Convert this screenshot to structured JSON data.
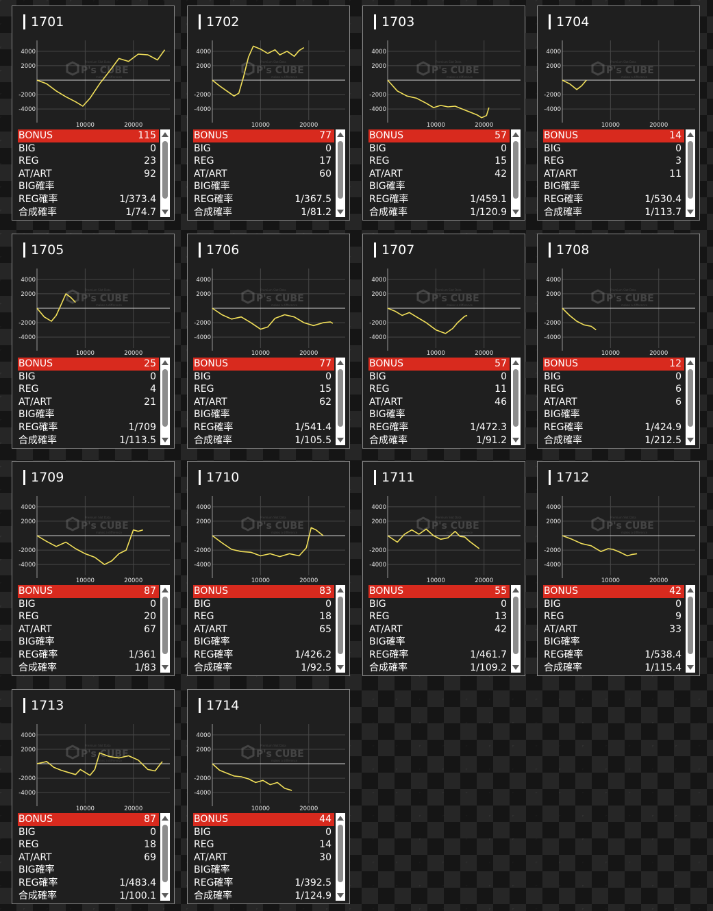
{
  "labels": {
    "bonus": "BONUS",
    "big": "BIG",
    "reg": "REG",
    "atart": "AT/ART",
    "big_rate": "BIG確率",
    "reg_rate": "REG確率",
    "total_rate": "合成確率"
  },
  "watermark": {
    "logo": "P's CUBE",
    "small_top": "Premium Slot Data",
    "small_bottom": "makes a difference"
  },
  "colors": {
    "bonus_row": "#d82a1e",
    "line": "#f2e05a",
    "card_bg": "#1f1f1f"
  },
  "machines": [
    {
      "id": "1701",
      "bonus": "115",
      "big": "0",
      "reg": "23",
      "atart": "92",
      "big_rate": "",
      "reg_rate": "1/373.4",
      "total_rate": "1/74.7"
    },
    {
      "id": "1702",
      "bonus": "77",
      "big": "0",
      "reg": "17",
      "atart": "60",
      "big_rate": "",
      "reg_rate": "1/367.5",
      "total_rate": "1/81.2"
    },
    {
      "id": "1703",
      "bonus": "57",
      "big": "0",
      "reg": "15",
      "atart": "42",
      "big_rate": "",
      "reg_rate": "1/459.1",
      "total_rate": "1/120.9"
    },
    {
      "id": "1704",
      "bonus": "14",
      "big": "0",
      "reg": "3",
      "atart": "11",
      "big_rate": "",
      "reg_rate": "1/530.4",
      "total_rate": "1/113.7"
    },
    {
      "id": "1705",
      "bonus": "25",
      "big": "0",
      "reg": "4",
      "atart": "21",
      "big_rate": "",
      "reg_rate": "1/709",
      "total_rate": "1/113.5"
    },
    {
      "id": "1706",
      "bonus": "77",
      "big": "0",
      "reg": "15",
      "atart": "62",
      "big_rate": "",
      "reg_rate": "1/541.4",
      "total_rate": "1/105.5"
    },
    {
      "id": "1707",
      "bonus": "57",
      "big": "0",
      "reg": "11",
      "atart": "46",
      "big_rate": "",
      "reg_rate": "1/472.3",
      "total_rate": "1/91.2"
    },
    {
      "id": "1708",
      "bonus": "12",
      "big": "0",
      "reg": "6",
      "atart": "6",
      "big_rate": "",
      "reg_rate": "1/424.9",
      "total_rate": "1/212.5"
    },
    {
      "id": "1709",
      "bonus": "87",
      "big": "0",
      "reg": "20",
      "atart": "67",
      "big_rate": "",
      "reg_rate": "1/361",
      "total_rate": "1/83"
    },
    {
      "id": "1710",
      "bonus": "83",
      "big": "0",
      "reg": "18",
      "atart": "65",
      "big_rate": "",
      "reg_rate": "1/426.2",
      "total_rate": "1/92.5"
    },
    {
      "id": "1711",
      "bonus": "55",
      "big": "0",
      "reg": "13",
      "atart": "42",
      "big_rate": "",
      "reg_rate": "1/461.7",
      "total_rate": "1/109.2"
    },
    {
      "id": "1712",
      "bonus": "42",
      "big": "0",
      "reg": "9",
      "atart": "33",
      "big_rate": "",
      "reg_rate": "1/538.4",
      "total_rate": "1/115.4"
    },
    {
      "id": "1713",
      "bonus": "87",
      "big": "0",
      "reg": "18",
      "atart": "69",
      "big_rate": "",
      "reg_rate": "1/483.4",
      "total_rate": "1/100.1"
    },
    {
      "id": "1714",
      "bonus": "44",
      "big": "0",
      "reg": "14",
      "atart": "30",
      "big_rate": "",
      "reg_rate": "1/392.5",
      "total_rate": "1/124.9"
    }
  ],
  "chart_data": [
    {
      "type": "line",
      "y_ticks": [
        "4000",
        "2000",
        "-2000",
        "-4000"
      ],
      "x_ticks": [
        "10000",
        "20000"
      ],
      "ylim": [
        -5500,
        5500
      ],
      "xlim": [
        0,
        27000
      ],
      "grid": true,
      "x": [
        0,
        2000,
        4000,
        6000,
        8000,
        9500,
        11000,
        13000,
        15000,
        17000,
        19000,
        21000,
        23000,
        25000,
        26500
      ],
      "y": [
        0,
        -500,
        -1500,
        -2300,
        -3000,
        -3600,
        -2500,
        -500,
        1200,
        3000,
        2600,
        3600,
        3500,
        2800,
        4200
      ]
    },
    {
      "type": "line",
      "y_ticks": [
        "4000",
        "2000",
        "-2000",
        "-4000"
      ],
      "x_ticks": [
        "10000",
        "20000"
      ],
      "ylim": [
        -5500,
        5500
      ],
      "xlim": [
        0,
        27000
      ],
      "grid": true,
      "x": [
        0,
        1500,
        3000,
        4500,
        5500,
        6500,
        7500,
        8500,
        10000,
        11500,
        13000,
        14000,
        15500,
        17000,
        18000,
        19000
      ],
      "y": [
        0,
        -800,
        -1500,
        -2200,
        -1800,
        500,
        3200,
        4700,
        4300,
        3700,
        4200,
        3500,
        4000,
        3300,
        4100,
        4500
      ]
    },
    {
      "type": "line",
      "y_ticks": [
        "4000",
        "2000",
        "-2000",
        "-4000"
      ],
      "x_ticks": [
        "10000",
        "20000"
      ],
      "ylim": [
        -5500,
        5500
      ],
      "xlim": [
        0,
        27000
      ],
      "grid": true,
      "x": [
        0,
        2000,
        4000,
        6000,
        8000,
        9500,
        11000,
        12500,
        14000,
        15500,
        17000,
        18500,
        19500,
        20500,
        21000
      ],
      "y": [
        0,
        -1500,
        -2200,
        -2500,
        -3200,
        -3800,
        -3500,
        -3700,
        -3600,
        -4000,
        -4400,
        -4800,
        -5200,
        -4900,
        -3800
      ]
    },
    {
      "type": "line",
      "y_ticks": [
        "4000",
        "2000",
        "-2000",
        "-4000"
      ],
      "x_ticks": [
        "10000",
        "20000"
      ],
      "ylim": [
        -5500,
        5500
      ],
      "xlim": [
        0,
        27000
      ],
      "grid": true,
      "x": [
        0,
        1500,
        3000,
        4000,
        5000
      ],
      "y": [
        0,
        -500,
        -1300,
        -800,
        0
      ]
    },
    {
      "type": "line",
      "y_ticks": [
        "4000",
        "2000",
        "-2000",
        "-4000"
      ],
      "x_ticks": [
        "10000",
        "20000"
      ],
      "ylim": [
        -5500,
        5500
      ],
      "xlim": [
        0,
        27000
      ],
      "grid": true,
      "x": [
        0,
        1500,
        3000,
        4000,
        5000,
        6000,
        7000,
        8000
      ],
      "y": [
        0,
        -1200,
        -1800,
        -1000,
        500,
        2000,
        1500,
        800
      ]
    },
    {
      "type": "line",
      "y_ticks": [
        "4000",
        "2000",
        "-2000",
        "-4000"
      ],
      "x_ticks": [
        "10000",
        "20000"
      ],
      "ylim": [
        -5500,
        5500
      ],
      "xlim": [
        0,
        27000
      ],
      "grid": true,
      "x": [
        0,
        2000,
        4000,
        6000,
        8000,
        10000,
        11500,
        13000,
        15000,
        17000,
        19000,
        21000,
        23000,
        24500,
        25000
      ],
      "y": [
        0,
        -900,
        -1500,
        -1200,
        -2000,
        -2900,
        -2600,
        -1400,
        -900,
        -1200,
        -2000,
        -2400,
        -2000,
        -1900,
        -2100
      ]
    },
    {
      "type": "line",
      "y_ticks": [
        "4000",
        "2000",
        "-2000",
        "-4000"
      ],
      "x_ticks": [
        "10000",
        "20000"
      ],
      "ylim": [
        -5500,
        5500
      ],
      "xlim": [
        0,
        27000
      ],
      "grid": true,
      "x": [
        0,
        1500,
        3000,
        4500,
        6000,
        8000,
        10000,
        12000,
        13500,
        14500,
        16000,
        16500
      ],
      "y": [
        0,
        -400,
        -1000,
        -600,
        -1200,
        -2000,
        -3000,
        -3500,
        -2800,
        -2000,
        -1100,
        -1000
      ]
    },
    {
      "type": "line",
      "y_ticks": [
        "4000",
        "2000",
        "-2000",
        "-4000"
      ],
      "x_ticks": [
        "10000",
        "20000"
      ],
      "ylim": [
        -5500,
        5500
      ],
      "xlim": [
        0,
        27000
      ],
      "grid": true,
      "x": [
        0,
        1500,
        3000,
        4500,
        6000,
        7000
      ],
      "y": [
        0,
        -1000,
        -1800,
        -2300,
        -2500,
        -3000
      ]
    },
    {
      "type": "line",
      "y_ticks": [
        "4000",
        "2000",
        "-2000",
        "-4000"
      ],
      "x_ticks": [
        "10000",
        "20000"
      ],
      "ylim": [
        -5500,
        5500
      ],
      "xlim": [
        0,
        27000
      ],
      "grid": true,
      "x": [
        0,
        2000,
        4000,
        6000,
        8000,
        10000,
        12000,
        14000,
        15500,
        17000,
        18500,
        20000,
        21000,
        22000
      ],
      "y": [
        0,
        -800,
        -1500,
        -900,
        -1800,
        -2500,
        -3000,
        -4000,
        -3500,
        -2500,
        -2000,
        800,
        600,
        800
      ]
    },
    {
      "type": "line",
      "y_ticks": [
        "4000",
        "2000",
        "-2000",
        "-4000"
      ],
      "x_ticks": [
        "10000",
        "20000"
      ],
      "ylim": [
        -5500,
        5500
      ],
      "xlim": [
        0,
        27000
      ],
      "grid": true,
      "x": [
        0,
        2000,
        4000,
        6000,
        8000,
        10000,
        12000,
        14000,
        16000,
        18000,
        19500,
        20500,
        21500,
        23000
      ],
      "y": [
        0,
        -1000,
        -1900,
        -2200,
        -2300,
        -2800,
        -2500,
        -2900,
        -2500,
        -2800,
        -1700,
        1100,
        800,
        0
      ]
    },
    {
      "type": "line",
      "y_ticks": [
        "4000",
        "2000",
        "-2000",
        "-4000"
      ],
      "x_ticks": [
        "10000",
        "20000"
      ],
      "ylim": [
        -5500,
        5500
      ],
      "xlim": [
        0,
        27000
      ],
      "grid": true,
      "x": [
        0,
        2000,
        3500,
        5000,
        6500,
        8000,
        9500,
        11000,
        12500,
        14000,
        15000,
        16000,
        17000,
        18000,
        19000
      ],
      "y": [
        0,
        -900,
        200,
        800,
        200,
        900,
        0,
        -500,
        -300,
        600,
        -100,
        -200,
        -800,
        -1300,
        -1800
      ]
    },
    {
      "type": "line",
      "y_ticks": [
        "4000",
        "2000",
        "-2000",
        "-4000"
      ],
      "x_ticks": [
        "10000",
        "20000"
      ],
      "ylim": [
        -5500,
        5500
      ],
      "xlim": [
        0,
        27000
      ],
      "grid": true,
      "x": [
        0,
        2000,
        4000,
        6000,
        8000,
        9500,
        10500,
        12000,
        13500,
        14500,
        15500
      ],
      "y": [
        0,
        -500,
        -1100,
        -1400,
        -2200,
        -1800,
        -1900,
        -2300,
        -2800,
        -2600,
        -2500
      ]
    },
    {
      "type": "line",
      "y_ticks": [
        "4000",
        "2000",
        "-2000",
        "-4000"
      ],
      "x_ticks": [
        "10000",
        "20000"
      ],
      "ylim": [
        -5500,
        5500
      ],
      "xlim": [
        0,
        27000
      ],
      "grid": true,
      "x": [
        0,
        2000,
        3500,
        5000,
        6500,
        8000,
        9000,
        10000,
        11000,
        12000,
        13000,
        15000,
        17000,
        19000,
        21000,
        23000,
        24500,
        26000
      ],
      "y": [
        0,
        300,
        -500,
        -900,
        -1200,
        -1500,
        -800,
        -1200,
        -1600,
        -800,
        1500,
        1000,
        800,
        1100,
        500,
        -800,
        -1000,
        300
      ]
    },
    {
      "type": "line",
      "y_ticks": [
        "4000",
        "2000",
        "-2000",
        "-4000"
      ],
      "x_ticks": [
        "10000",
        "20000"
      ],
      "ylim": [
        -5500,
        5500
      ],
      "xlim": [
        0,
        27000
      ],
      "grid": true,
      "x": [
        0,
        1500,
        3000,
        4500,
        6000,
        7500,
        9000,
        10500,
        12000,
        13500,
        15000,
        16500
      ],
      "y": [
        0,
        -900,
        -1300,
        -1700,
        -1800,
        -2100,
        -2600,
        -2300,
        -2900,
        -2600,
        -3400,
        -3700
      ]
    }
  ]
}
